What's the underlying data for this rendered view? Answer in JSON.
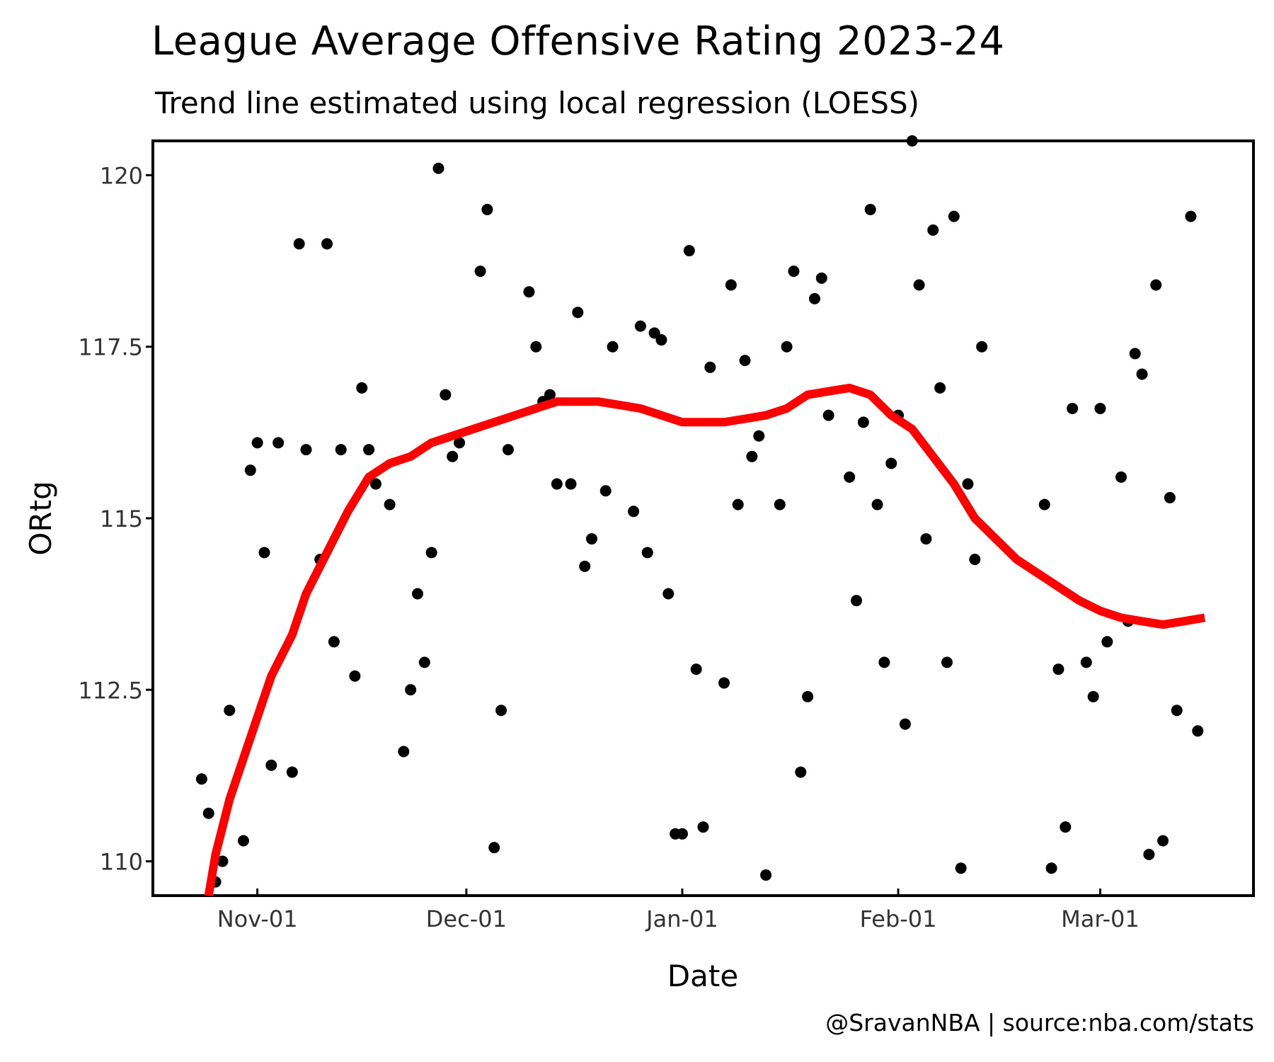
{
  "chart_data": {
    "type": "scatter",
    "title": "League Average Offensive Rating 2023-24",
    "subtitle": "Trend line estimated using local regression (LOESS)",
    "xlabel": "Date",
    "ylabel": "ORtg",
    "credit": "@SravanNBA | source:nba.com/stats",
    "xlim": [
      "2023-10-17",
      "2024-03-23"
    ],
    "ylim": [
      109.5,
      120.5
    ],
    "x_ticks": [
      {
        "date": "2023-11-01",
        "label": "Nov-01"
      },
      {
        "date": "2023-12-01",
        "label": "Dec-01"
      },
      {
        "date": "2024-01-01",
        "label": "Jan-01"
      },
      {
        "date": "2024-02-01",
        "label": "Feb-01"
      },
      {
        "date": "2024-03-01",
        "label": "Mar-01"
      }
    ],
    "y_ticks": [
      {
        "value": 110,
        "label": "110"
      },
      {
        "value": 112.5,
        "label": "112.5"
      },
      {
        "value": 115,
        "label": "115"
      },
      {
        "value": 117.5,
        "label": "117.5"
      },
      {
        "value": 120,
        "label": "120"
      }
    ],
    "grid": false,
    "colors": {
      "points": "#000000",
      "trend": "#ff0000",
      "axes": "#000000"
    },
    "points": [
      {
        "x": "2023-10-24",
        "y": 111.2
      },
      {
        "x": "2023-10-25",
        "y": 110.7
      },
      {
        "x": "2023-10-26",
        "y": 109.7
      },
      {
        "x": "2023-10-27",
        "y": 110.0
      },
      {
        "x": "2023-10-28",
        "y": 112.2
      },
      {
        "x": "2023-10-30",
        "y": 110.3
      },
      {
        "x": "2023-10-31",
        "y": 115.7
      },
      {
        "x": "2023-11-01",
        "y": 116.1
      },
      {
        "x": "2023-11-02",
        "y": 114.5
      },
      {
        "x": "2023-11-03",
        "y": 111.4
      },
      {
        "x": "2023-11-04",
        "y": 116.1
      },
      {
        "x": "2023-11-06",
        "y": 111.3
      },
      {
        "x": "2023-11-07",
        "y": 119.0
      },
      {
        "x": "2023-11-08",
        "y": 116.0
      },
      {
        "x": "2023-11-10",
        "y": 114.4
      },
      {
        "x": "2023-11-11",
        "y": 119.0
      },
      {
        "x": "2023-11-12",
        "y": 113.2
      },
      {
        "x": "2023-11-13",
        "y": 116.0
      },
      {
        "x": "2023-11-15",
        "y": 112.7
      },
      {
        "x": "2023-11-16",
        "y": 116.9
      },
      {
        "x": "2023-11-17",
        "y": 116.0
      },
      {
        "x": "2023-11-18",
        "y": 115.5
      },
      {
        "x": "2023-11-20",
        "y": 115.2
      },
      {
        "x": "2023-11-22",
        "y": 111.6
      },
      {
        "x": "2023-11-23",
        "y": 112.5
      },
      {
        "x": "2023-11-24",
        "y": 113.9
      },
      {
        "x": "2023-11-25",
        "y": 112.9
      },
      {
        "x": "2023-11-26",
        "y": 114.5
      },
      {
        "x": "2023-11-27",
        "y": 120.1
      },
      {
        "x": "2023-11-28",
        "y": 116.8
      },
      {
        "x": "2023-11-29",
        "y": 115.9
      },
      {
        "x": "2023-11-30",
        "y": 116.1
      },
      {
        "x": "2023-12-03",
        "y": 118.6
      },
      {
        "x": "2023-12-04",
        "y": 119.5
      },
      {
        "x": "2023-12-05",
        "y": 110.2
      },
      {
        "x": "2023-12-06",
        "y": 112.2
      },
      {
        "x": "2023-12-07",
        "y": 116.0
      },
      {
        "x": "2023-12-10",
        "y": 118.3
      },
      {
        "x": "2023-12-11",
        "y": 117.5
      },
      {
        "x": "2023-12-12",
        "y": 116.7
      },
      {
        "x": "2023-12-13",
        "y": 116.8
      },
      {
        "x": "2023-12-14",
        "y": 115.5
      },
      {
        "x": "2023-12-16",
        "y": 115.5
      },
      {
        "x": "2023-12-17",
        "y": 118.0
      },
      {
        "x": "2023-12-18",
        "y": 114.3
      },
      {
        "x": "2023-12-19",
        "y": 114.7
      },
      {
        "x": "2023-12-21",
        "y": 115.4
      },
      {
        "x": "2023-12-22",
        "y": 117.5
      },
      {
        "x": "2023-12-25",
        "y": 115.1
      },
      {
        "x": "2023-12-26",
        "y": 117.8
      },
      {
        "x": "2023-12-27",
        "y": 114.5
      },
      {
        "x": "2023-12-28",
        "y": 117.7
      },
      {
        "x": "2023-12-29",
        "y": 117.6
      },
      {
        "x": "2023-12-30",
        "y": 113.9
      },
      {
        "x": "2023-12-31",
        "y": 110.4
      },
      {
        "x": "2024-01-01",
        "y": 110.4
      },
      {
        "x": "2024-01-02",
        "y": 118.9
      },
      {
        "x": "2024-01-03",
        "y": 112.8
      },
      {
        "x": "2024-01-04",
        "y": 110.5
      },
      {
        "x": "2024-01-05",
        "y": 117.2
      },
      {
        "x": "2024-01-07",
        "y": 112.6
      },
      {
        "x": "2024-01-08",
        "y": 118.4
      },
      {
        "x": "2024-01-09",
        "y": 115.2
      },
      {
        "x": "2024-01-10",
        "y": 117.3
      },
      {
        "x": "2024-01-11",
        "y": 115.9
      },
      {
        "x": "2024-01-12",
        "y": 116.2
      },
      {
        "x": "2024-01-13",
        "y": 109.8
      },
      {
        "x": "2024-01-15",
        "y": 115.2
      },
      {
        "x": "2024-01-16",
        "y": 117.5
      },
      {
        "x": "2024-01-17",
        "y": 118.6
      },
      {
        "x": "2024-01-18",
        "y": 111.3
      },
      {
        "x": "2024-01-19",
        "y": 112.4
      },
      {
        "x": "2024-01-20",
        "y": 118.2
      },
      {
        "x": "2024-01-21",
        "y": 118.5
      },
      {
        "x": "2024-01-22",
        "y": 116.5
      },
      {
        "x": "2024-01-25",
        "y": 115.6
      },
      {
        "x": "2024-01-26",
        "y": 113.8
      },
      {
        "x": "2024-01-27",
        "y": 116.4
      },
      {
        "x": "2024-01-28",
        "y": 119.5
      },
      {
        "x": "2024-01-29",
        "y": 115.2
      },
      {
        "x": "2024-01-30",
        "y": 112.9
      },
      {
        "x": "2024-01-31",
        "y": 115.8
      },
      {
        "x": "2024-02-01",
        "y": 116.5
      },
      {
        "x": "2024-02-02",
        "y": 112.0
      },
      {
        "x": "2024-02-03",
        "y": 120.5
      },
      {
        "x": "2024-02-04",
        "y": 118.4
      },
      {
        "x": "2024-02-05",
        "y": 114.7
      },
      {
        "x": "2024-02-06",
        "y": 119.2
      },
      {
        "x": "2024-02-07",
        "y": 116.9
      },
      {
        "x": "2024-02-08",
        "y": 112.9
      },
      {
        "x": "2024-02-09",
        "y": 119.4
      },
      {
        "x": "2024-02-10",
        "y": 109.9
      },
      {
        "x": "2024-02-11",
        "y": 115.5
      },
      {
        "x": "2024-02-12",
        "y": 114.4
      },
      {
        "x": "2024-02-13",
        "y": 117.5
      },
      {
        "x": "2024-02-22",
        "y": 115.2
      },
      {
        "x": "2024-02-23",
        "y": 109.9
      },
      {
        "x": "2024-02-24",
        "y": 112.8
      },
      {
        "x": "2024-02-25",
        "y": 110.5
      },
      {
        "x": "2024-02-26",
        "y": 116.6
      },
      {
        "x": "2024-02-28",
        "y": 112.9
      },
      {
        "x": "2024-02-29",
        "y": 112.4
      },
      {
        "x": "2024-03-01",
        "y": 116.6
      },
      {
        "x": "2024-03-02",
        "y": 113.2
      },
      {
        "x": "2024-03-04",
        "y": 115.6
      },
      {
        "x": "2024-03-05",
        "y": 113.5
      },
      {
        "x": "2024-03-06",
        "y": 117.4
      },
      {
        "x": "2024-03-07",
        "y": 117.1
      },
      {
        "x": "2024-03-08",
        "y": 110.1
      },
      {
        "x": "2024-03-09",
        "y": 118.4
      },
      {
        "x": "2024-03-10",
        "y": 110.3
      },
      {
        "x": "2024-03-11",
        "y": 115.3
      },
      {
        "x": "2024-03-12",
        "y": 112.2
      },
      {
        "x": "2024-03-14",
        "y": 119.4
      },
      {
        "x": "2024-03-15",
        "y": 111.9
      }
    ],
    "trend_line": [
      {
        "x": "2023-10-25",
        "y": 109.5
      },
      {
        "x": "2023-10-26",
        "y": 110.1
      },
      {
        "x": "2023-10-28",
        "y": 110.9
      },
      {
        "x": "2023-10-31",
        "y": 111.8
      },
      {
        "x": "2023-11-03",
        "y": 112.7
      },
      {
        "x": "2023-11-06",
        "y": 113.3
      },
      {
        "x": "2023-11-08",
        "y": 113.9
      },
      {
        "x": "2023-11-11",
        "y": 114.5
      },
      {
        "x": "2023-11-14",
        "y": 115.1
      },
      {
        "x": "2023-11-17",
        "y": 115.6
      },
      {
        "x": "2023-11-20",
        "y": 115.8
      },
      {
        "x": "2023-11-23",
        "y": 115.9
      },
      {
        "x": "2023-11-26",
        "y": 116.1
      },
      {
        "x": "2023-11-29",
        "y": 116.2
      },
      {
        "x": "2023-12-02",
        "y": 116.3
      },
      {
        "x": "2023-12-05",
        "y": 116.4
      },
      {
        "x": "2023-12-08",
        "y": 116.5
      },
      {
        "x": "2023-12-11",
        "y": 116.6
      },
      {
        "x": "2023-12-14",
        "y": 116.7
      },
      {
        "x": "2023-12-17",
        "y": 116.7
      },
      {
        "x": "2023-12-20",
        "y": 116.7
      },
      {
        "x": "2023-12-23",
        "y": 116.65
      },
      {
        "x": "2023-12-26",
        "y": 116.6
      },
      {
        "x": "2023-12-29",
        "y": 116.5
      },
      {
        "x": "2024-01-01",
        "y": 116.4
      },
      {
        "x": "2024-01-04",
        "y": 116.4
      },
      {
        "x": "2024-01-07",
        "y": 116.4
      },
      {
        "x": "2024-01-10",
        "y": 116.45
      },
      {
        "x": "2024-01-13",
        "y": 116.5
      },
      {
        "x": "2024-01-16",
        "y": 116.6
      },
      {
        "x": "2024-01-19",
        "y": 116.8
      },
      {
        "x": "2024-01-22",
        "y": 116.85
      },
      {
        "x": "2024-01-25",
        "y": 116.9
      },
      {
        "x": "2024-01-28",
        "y": 116.8
      },
      {
        "x": "2024-01-31",
        "y": 116.5
      },
      {
        "x": "2024-02-03",
        "y": 116.3
      },
      {
        "x": "2024-02-06",
        "y": 115.9
      },
      {
        "x": "2024-02-09",
        "y": 115.5
      },
      {
        "x": "2024-02-12",
        "y": 115.0
      },
      {
        "x": "2024-02-15",
        "y": 114.7
      },
      {
        "x": "2024-02-18",
        "y": 114.4
      },
      {
        "x": "2024-02-21",
        "y": 114.2
      },
      {
        "x": "2024-02-24",
        "y": 114.0
      },
      {
        "x": "2024-02-27",
        "y": 113.8
      },
      {
        "x": "2024-03-01",
        "y": 113.65
      },
      {
        "x": "2024-03-04",
        "y": 113.55
      },
      {
        "x": "2024-03-07",
        "y": 113.5
      },
      {
        "x": "2024-03-10",
        "y": 113.45
      },
      {
        "x": "2024-03-13",
        "y": 113.5
      },
      {
        "x": "2024-03-16",
        "y": 113.55
      }
    ]
  }
}
